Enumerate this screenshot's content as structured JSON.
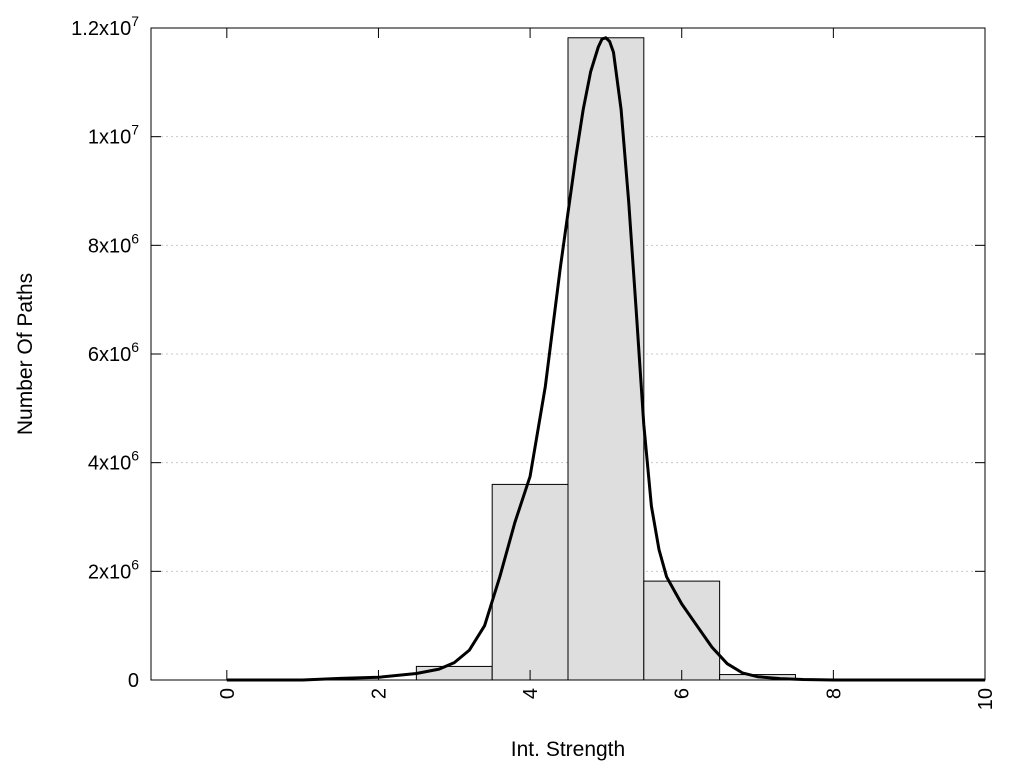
{
  "chart_data": {
    "type": "bar",
    "xlabel": "Int. Strength",
    "ylabel": "Number Of Paths",
    "xlim": [
      -1,
      10
    ],
    "ylim": [
      0,
      12000000
    ],
    "grid": true,
    "x_ticks": [
      {
        "value": 0,
        "label": "0"
      },
      {
        "value": 2,
        "label": "2"
      },
      {
        "value": 4,
        "label": "4"
      },
      {
        "value": 6,
        "label": "6"
      },
      {
        "value": 8,
        "label": "8"
      },
      {
        "value": 10,
        "label": "10"
      }
    ],
    "y_ticks": [
      {
        "value": 0,
        "base": "0",
        "exp": ""
      },
      {
        "value": 2000000,
        "base": "2x10",
        "exp": "6"
      },
      {
        "value": 4000000,
        "base": "4x10",
        "exp": "6"
      },
      {
        "value": 6000000,
        "base": "6x10",
        "exp": "6"
      },
      {
        "value": 8000000,
        "base": "8x10",
        "exp": "6"
      },
      {
        "value": 10000000,
        "base": "1x10",
        "exp": "7"
      },
      {
        "value": 12000000,
        "base": "1.2x10",
        "exp": "7"
      }
    ],
    "bars": {
      "x": [
        3,
        4,
        5,
        6,
        7
      ],
      "width": 1,
      "values": [
        250000,
        3600000,
        11820000,
        1820000,
        100000
      ]
    },
    "curve": {
      "x": [
        0,
        1,
        1.5,
        2,
        2.5,
        2.8,
        3,
        3.2,
        3.4,
        3.6,
        3.8,
        4,
        4.2,
        4.4,
        4.6,
        4.7,
        4.8,
        4.9,
        4.95,
        5,
        5.05,
        5.1,
        5.2,
        5.3,
        5.4,
        5.5,
        5.6,
        5.7,
        5.8,
        5.9,
        6,
        6.2,
        6.4,
        6.6,
        6.8,
        7,
        7.3,
        7.6,
        8,
        9,
        10
      ],
      "y": [
        0,
        0,
        30000,
        50000,
        120000,
        200000,
        320000,
        550000,
        1000000,
        1900000,
        2900000,
        3750000,
        5400000,
        7600000,
        9600000,
        10500000,
        11200000,
        11650000,
        11800000,
        11820000,
        11750000,
        11550000,
        10500000,
        8800000,
        6800000,
        4700000,
        3200000,
        2400000,
        1900000,
        1650000,
        1400000,
        1000000,
        600000,
        300000,
        130000,
        60000,
        25000,
        10000,
        0,
        0,
        0
      ]
    }
  }
}
